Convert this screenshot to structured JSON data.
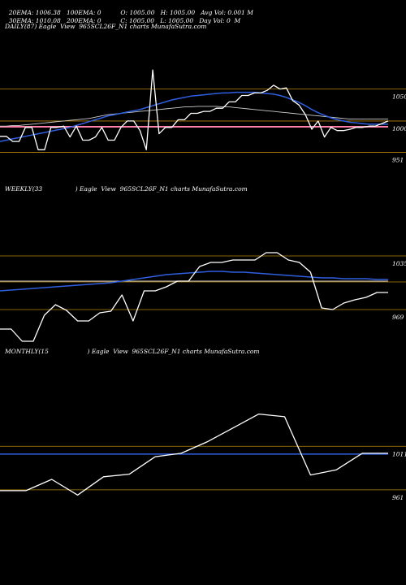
{
  "header": {
    "ema20": "20EMA: 1006.38",
    "ema100": "100EMA: 0",
    "open": "O: 1005.00",
    "high": "H: 1005.00",
    "avg_vol": "Avg Vol: 0.001 M",
    "ema30": "30EMA: 1010.08",
    "ema200": "200EMA: 0",
    "close": "C: 1005.00",
    "low": "L: 1005.00",
    "day_vol": "Day Vol: 0  M"
  },
  "panels": {
    "daily_title": "DAILY(87) Eagle  View  965SCL26F_N1 charts MunafaSutra.com",
    "weekly_title": "WEEKLY(33                 ) Eagle  View  965SCL26F_N1 charts MunafaSutra.com",
    "monthly_title": "MONTHLY(15                    ) Eagle  View  965SCL26F_N1 charts MunafaSutra.com"
  },
  "colors": {
    "price": "#ffffff",
    "ema_blue": "#2f5fe0",
    "pink": "#ff7fa8",
    "orange_grid": "#b8860b",
    "white_ema": "#cccccc"
  },
  "chart_data": [
    {
      "type": "line",
      "name": "daily",
      "ylim": [
        935,
        1075
      ],
      "levels": [
        {
          "value": 1050,
          "label": "1050"
        },
        {
          "value": 1000,
          "label": "1000"
        },
        {
          "value": 951,
          "label": "951"
        }
      ],
      "pink_line": 991,
      "series": [
        {
          "kind": "price",
          "values": [
            976,
            976,
            968,
            968,
            990,
            990,
            955,
            955,
            990,
            990,
            992,
            975,
            992,
            970,
            970,
            975,
            990,
            970,
            970,
            990,
            1000,
            1000,
            985,
            955,
            1080,
            980,
            990,
            990,
            1002,
            1002,
            1012,
            1012,
            1015,
            1015,
            1020,
            1020,
            1030,
            1030,
            1040,
            1040,
            1044,
            1044,
            1048,
            1056,
            1050,
            1052,
            1032,
            1025,
            1010,
            987,
            1000,
            975,
            990,
            985,
            985,
            987,
            990,
            990,
            992,
            992,
            996,
            1000
          ]
        },
        {
          "kind": "ema_blue",
          "values": [
            968,
            970,
            972,
            974,
            976,
            978,
            980,
            982,
            984,
            986,
            988,
            990,
            993,
            996,
            999,
            1002,
            1005,
            1008,
            1010,
            1012,
            1014,
            1016,
            1018,
            1021,
            1024,
            1027,
            1030,
            1033,
            1035,
            1037,
            1039,
            1040,
            1041,
            1042,
            1043,
            1044,
            1044,
            1045,
            1045,
            1045,
            1045,
            1044,
            1043,
            1042,
            1040,
            1037,
            1033,
            1029,
            1024,
            1018,
            1013,
            1009,
            1005,
            1002,
            1000,
            998,
            997,
            996,
            995,
            995,
            995,
            995
          ]
        },
        {
          "kind": "ema_white",
          "values": [
            992,
            992,
            993,
            993,
            994,
            995,
            996,
            997,
            998,
            999,
            1000,
            1001,
            1002,
            1003,
            1004,
            1006,
            1008,
            1010,
            1011,
            1012,
            1013,
            1014,
            1015,
            1016,
            1017,
            1018,
            1019,
            1020,
            1021,
            1022,
            1022,
            1023,
            1023,
            1023,
            1023,
            1022,
            1022,
            1021,
            1020,
            1019,
            1018,
            1017,
            1016,
            1015,
            1014,
            1013,
            1012,
            1011,
            1010,
            1009,
            1008,
            1007,
            1006,
            1005,
            1004,
            1003,
            1003,
            1003,
            1003,
            1003,
            1003,
            1003
          ]
        }
      ]
    },
    {
      "type": "line",
      "name": "weekly",
      "ylim": [
        920,
        1060
      ],
      "levels": [
        {
          "value": 1035,
          "label": "1035"
        },
        {
          "value": 1003,
          "label": ""
        },
        {
          "value": 969,
          "label": "969"
        }
      ],
      "series": [
        {
          "kind": "price",
          "values": [
            945,
            945,
            930,
            930,
            962,
            975,
            968,
            955,
            955,
            965,
            967,
            987,
            955,
            992,
            992,
            997,
            1004,
            1004,
            1022,
            1027,
            1027,
            1030,
            1030,
            1030,
            1039,
            1039,
            1030,
            1027,
            1015,
            971,
            969,
            977,
            981,
            984,
            990,
            990
          ]
        },
        {
          "kind": "ema_blue",
          "values": [
            992,
            993,
            994,
            995,
            996,
            997,
            998,
            999,
            1000,
            1001,
            1002,
            1004,
            1006,
            1008,
            1010,
            1012,
            1013,
            1014,
            1015,
            1016,
            1016,
            1015,
            1015,
            1014,
            1013,
            1012,
            1011,
            1010,
            1009,
            1008,
            1008,
            1007,
            1007,
            1007,
            1006,
            1006
          ]
        },
        {
          "kind": "ema_white",
          "values": [
            1004,
            1004,
            1004,
            1004,
            1004,
            1004,
            1004,
            1004,
            1004,
            1004,
            1004,
            1004,
            1004,
            1004,
            1004,
            1004,
            1004,
            1004,
            1004,
            1004,
            1004,
            1004,
            1004,
            1004,
            1004,
            1004,
            1004,
            1004,
            1004,
            1004,
            1004,
            1004,
            1004,
            1004,
            1004,
            1004
          ]
        }
      ]
    },
    {
      "type": "line",
      "name": "monthly",
      "ylim": [
        945,
        1085
      ],
      "levels": [
        {
          "value": 1011,
          "label": "1011"
        },
        {
          "value": 961,
          "label": "961"
        }
      ],
      "series": [
        {
          "kind": "price",
          "values": [
            960,
            960,
            973,
            955,
            976,
            979,
            999,
            1003,
            1016,
            1032,
            1048,
            1045,
            978,
            984,
            1003,
            1003
          ]
        },
        {
          "kind": "ema_blue",
          "values": [
            1002,
            1002,
            1002,
            1002,
            1002,
            1002,
            1002,
            1002,
            1002,
            1002,
            1002,
            1002,
            1002,
            1002,
            1002,
            1002
          ]
        }
      ]
    }
  ]
}
